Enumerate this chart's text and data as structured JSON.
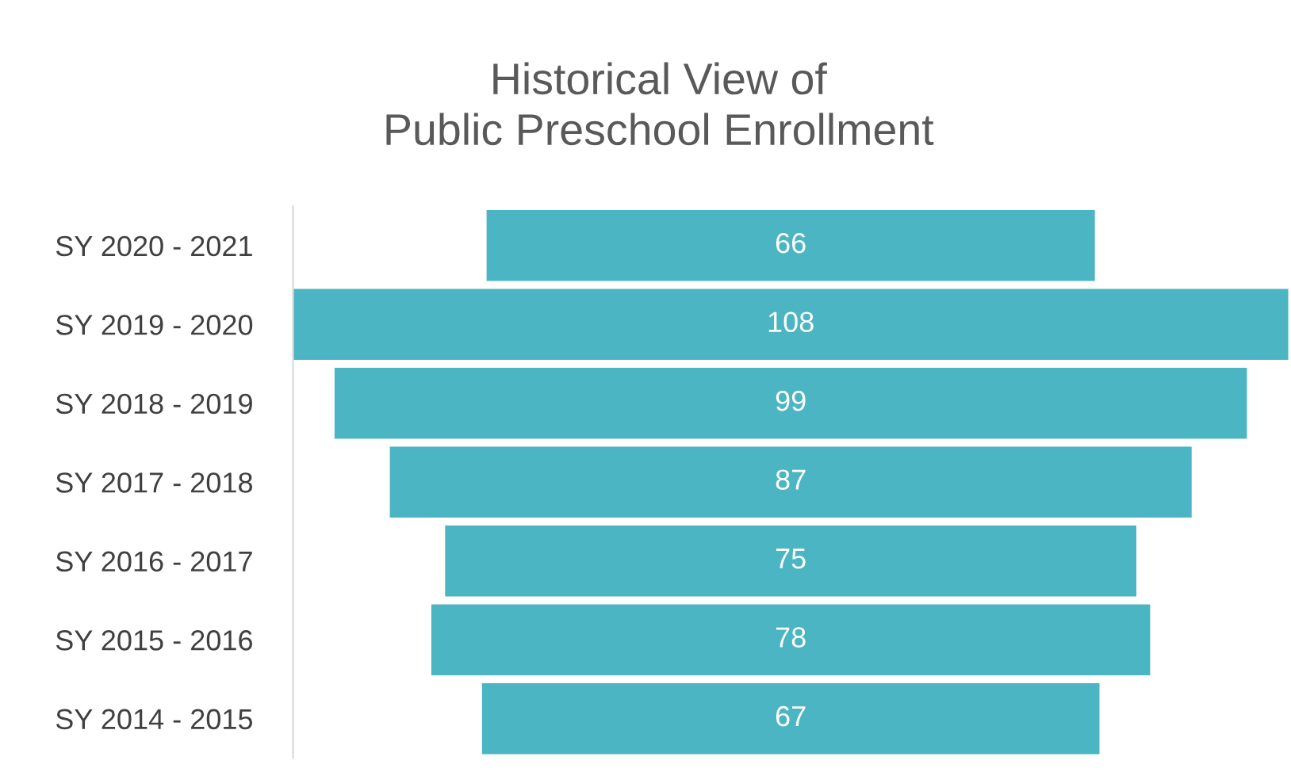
{
  "chart_data": {
    "type": "other",
    "title": "Historical View of\nPublic Preschool Enrollment",
    "categories": [
      "SY 2020 - 2021",
      "SY 2019 - 2020",
      "SY 2018 - 2019",
      "SY 2017 - 2018",
      "SY 2016 - 2017",
      "SY 2015 - 2016",
      "SY 2014 - 2015"
    ],
    "values": [
      66,
      108,
      99,
      87,
      75,
      78,
      67
    ],
    "color": "#4bb5c4",
    "data_labels": true
  }
}
